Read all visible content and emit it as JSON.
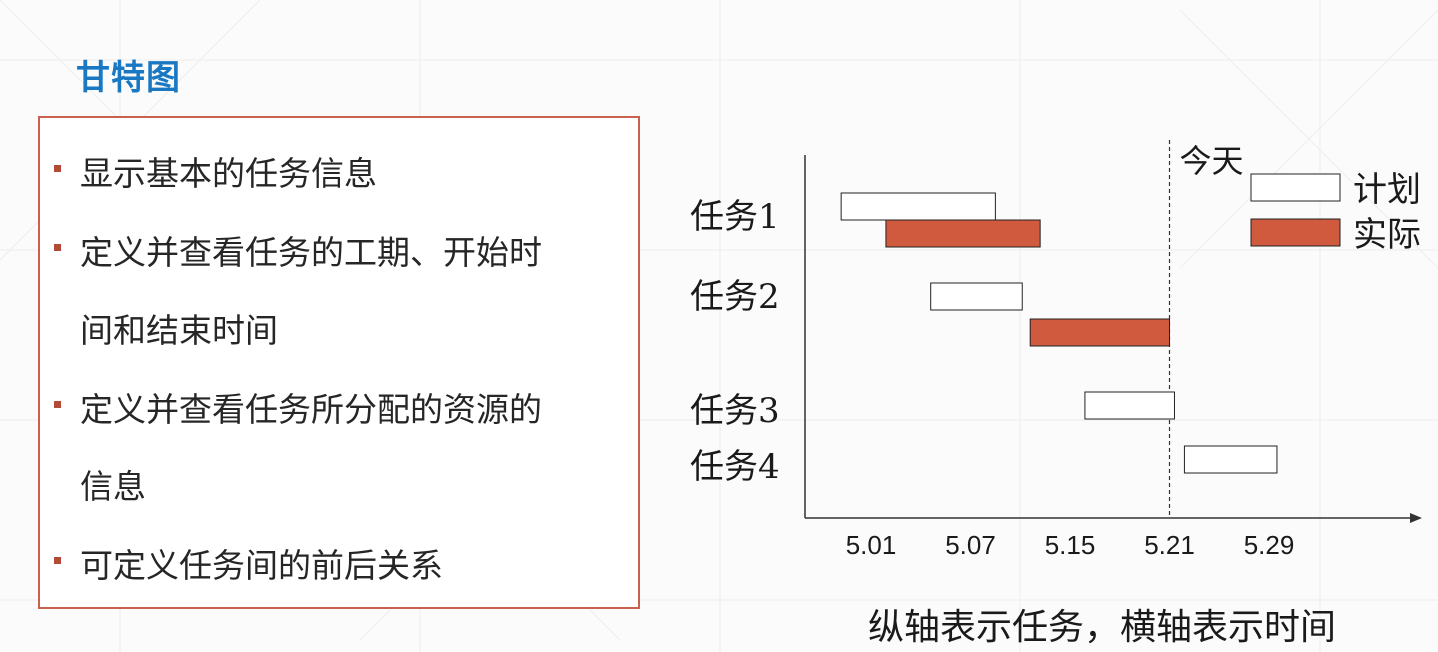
{
  "slide": {
    "title": "甘特图",
    "bullets": [
      "显示基本的任务信息",
      "定义并查看任务的工期、开始时",
      "间和结束时间",
      "定义并查看任务所分配的资源的",
      "信息",
      "可定义任务间的前后关系"
    ],
    "caption": "纵轴表示任务，横轴表示时间"
  },
  "colors": {
    "title": "#1a78c2",
    "box_border": "#c8624e",
    "bullet_marker": "#b44a36",
    "actual_bar": "#cf5a3e",
    "plan_bar": "#ffffff"
  },
  "chart_data": {
    "type": "gantt",
    "x_ticks": [
      "5.01",
      "5.07",
      "5.15",
      "5.21",
      "5.29"
    ],
    "today_label": "今天",
    "today_value": 3.0,
    "legend": [
      {
        "name": "计划",
        "kind": "plan"
      },
      {
        "name": "实际",
        "kind": "actual"
      }
    ],
    "tasks": [
      {
        "name": "任务1",
        "plan": [
          -0.3,
          1.25
        ],
        "actual": [
          0.15,
          1.7
        ]
      },
      {
        "name": "任务2",
        "plan": [
          0.6,
          1.52
        ],
        "actual": [
          1.6,
          3.0
        ]
      },
      {
        "name": "任务3",
        "plan": [
          2.15,
          3.05
        ],
        "actual": null
      },
      {
        "name": "任务4",
        "plan": [
          3.15,
          4.08
        ],
        "actual": null
      }
    ]
  }
}
